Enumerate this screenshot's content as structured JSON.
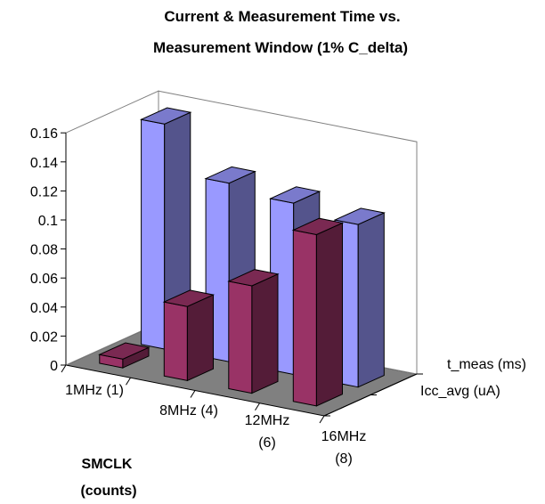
{
  "chart_data": {
    "type": "bar",
    "title_line1": "Current & Measurement Time vs.",
    "title_line2": "Measurement Window (1% C_delta)",
    "xlabel_line1": "SMCLK",
    "xlabel_line2": "(counts)",
    "ylabel": "",
    "ylim": [
      0,
      0.16
    ],
    "yticks": [
      "0",
      "0.02",
      "0.04",
      "0.06",
      "0.08",
      "0.1",
      "0.12",
      "0.14",
      "0.16"
    ],
    "categories": [
      {
        "line1": "1MHz (1)",
        "line2": ""
      },
      {
        "line1": "8MHz (4)",
        "line2": ""
      },
      {
        "line1": "12MHz",
        "line2": "(6)"
      },
      {
        "line1": "16MHz",
        "line2": "(8)"
      }
    ],
    "series": [
      {
        "name": "t_meas (ms)",
        "values": [
          0.155,
          0.123,
          0.118,
          0.112
        ],
        "color": "#9999ff"
      },
      {
        "name": "Icc_avg (uA)",
        "values": [
          0.006,
          0.051,
          0.074,
          0.118
        ],
        "color": "#993366"
      }
    ],
    "grid": false,
    "projection": "3d",
    "depth_labels_position": "right"
  }
}
